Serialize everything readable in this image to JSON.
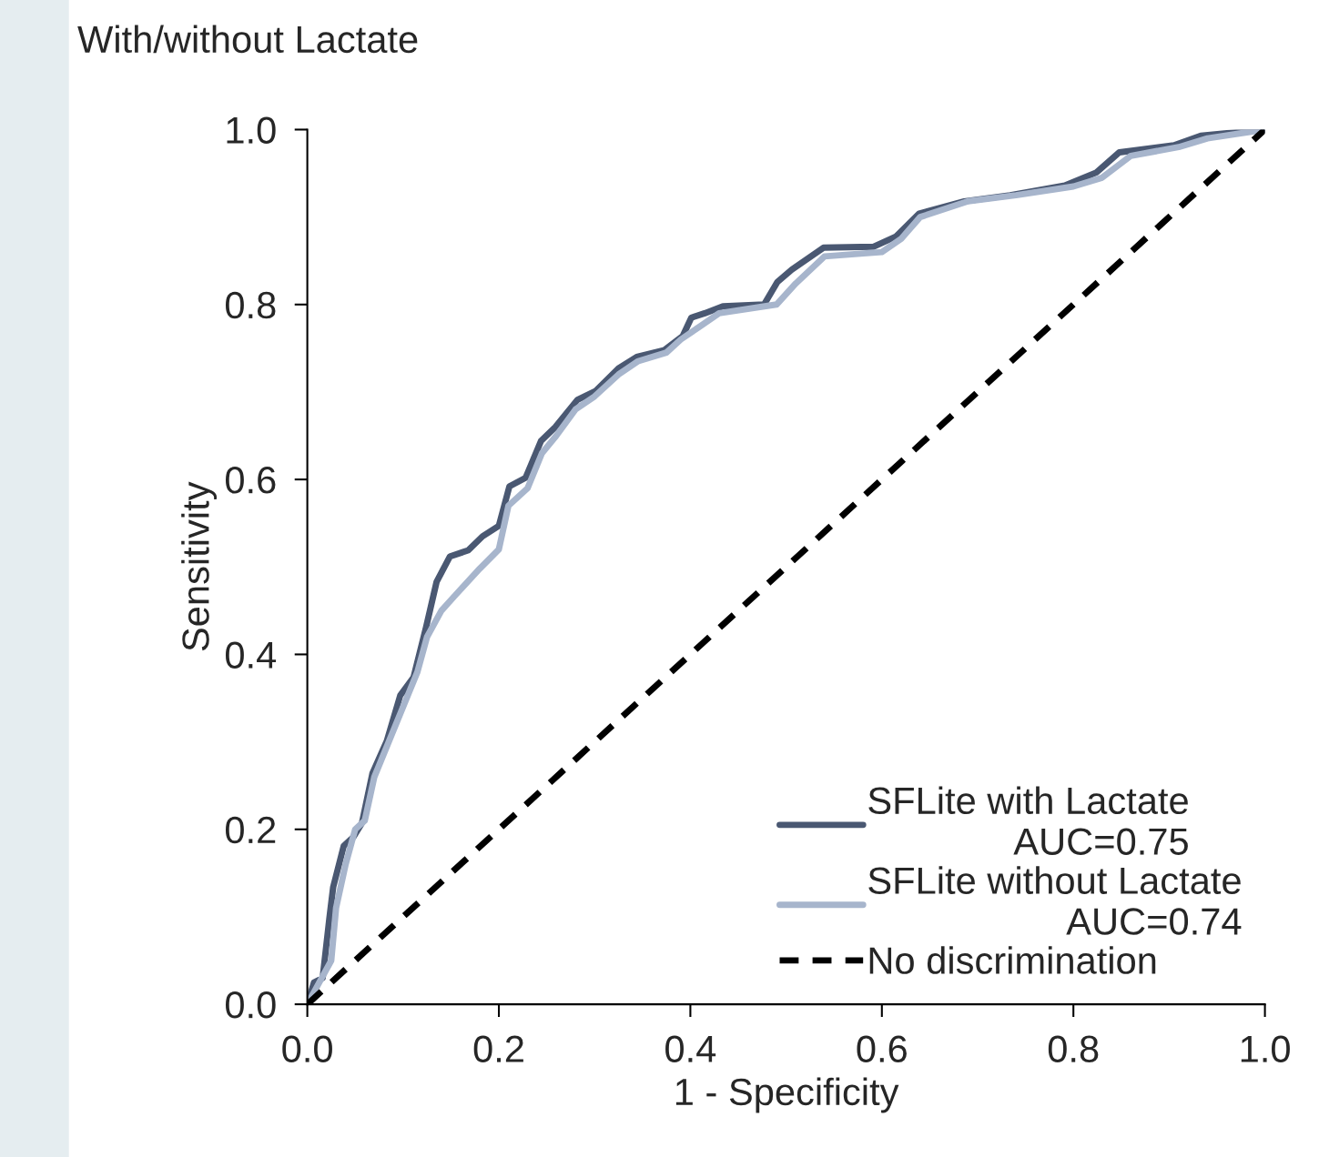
{
  "chart_data": {
    "type": "line",
    "title": "With/without Lactate",
    "xlabel": "1 - Specificity",
    "ylabel": "Sensitivity",
    "xlim": [
      0,
      1
    ],
    "ylim": [
      0,
      1
    ],
    "xticks": [
      {
        "value": 0,
        "label": "0.0"
      },
      0.2,
      0.4,
      0.6,
      0.8,
      {
        "value": 1,
        "label": "1.0"
      }
    ],
    "yticks": [
      {
        "value": 0,
        "label": "0.0"
      },
      0.2,
      0.4,
      0.6,
      0.8,
      {
        "value": 1,
        "label": "1.0"
      }
    ],
    "grid": false,
    "legend": "bottom right",
    "marker": "none",
    "series": [
      {
        "name": "SFLite with Lactate\nAUC=0.75",
        "color": "#4a5872",
        "line_style": "solid",
        "x": [
          0,
          0.007,
          0.016,
          0.023,
          0.027,
          0.038,
          0.048,
          0.057,
          0.068,
          0.083,
          0.097,
          0.111,
          0.124,
          0.135,
          0.149,
          0.168,
          0.183,
          0.2,
          0.211,
          0.228,
          0.244,
          0.259,
          0.282,
          0.301,
          0.325,
          0.344,
          0.373,
          0.392,
          0.401,
          0.415,
          0.434,
          0.477,
          0.491,
          0.506,
          0.539,
          0.591,
          0.615,
          0.639,
          0.686,
          0.734,
          0.791,
          0.824,
          0.848,
          0.905,
          0.933,
          1
        ],
        "values": [
          0,
          0.025,
          0.03,
          0.098,
          0.134,
          0.181,
          0.191,
          0.207,
          0.264,
          0.301,
          0.353,
          0.374,
          0.431,
          0.483,
          0.512,
          0.519,
          0.535,
          0.547,
          0.592,
          0.602,
          0.644,
          0.66,
          0.691,
          0.701,
          0.727,
          0.74,
          0.748,
          0.764,
          0.785,
          0.79,
          0.798,
          0.8,
          0.826,
          0.84,
          0.865,
          0.866,
          0.878,
          0.904,
          0.918,
          0.925,
          0.936,
          0.951,
          0.974,
          0.982,
          0.993,
          1
        ]
      },
      {
        "name": "SFLite without Lactate\nAUC=0.74",
        "color": "#a7b5cc",
        "line_style": "solid",
        "x": [
          0,
          0.01,
          0.025,
          0.03,
          0.04,
          0.05,
          0.06,
          0.07,
          0.085,
          0.1,
          0.115,
          0.125,
          0.14,
          0.154,
          0.18,
          0.2,
          0.21,
          0.23,
          0.245,
          0.26,
          0.28,
          0.3,
          0.325,
          0.345,
          0.375,
          0.39,
          0.41,
          0.43,
          0.49,
          0.51,
          0.54,
          0.6,
          0.62,
          0.64,
          0.69,
          0.74,
          0.8,
          0.83,
          0.86,
          0.91,
          0.94,
          1
        ],
        "values": [
          0,
          0.02,
          0.05,
          0.11,
          0.16,
          0.2,
          0.21,
          0.26,
          0.3,
          0.34,
          0.38,
          0.42,
          0.45,
          0.467,
          0.498,
          0.52,
          0.57,
          0.59,
          0.63,
          0.65,
          0.68,
          0.695,
          0.72,
          0.735,
          0.745,
          0.76,
          0.775,
          0.79,
          0.8,
          0.824,
          0.855,
          0.86,
          0.875,
          0.9,
          0.918,
          0.925,
          0.935,
          0.945,
          0.97,
          0.98,
          0.99,
          1
        ]
      },
      {
        "name": "No discrimination",
        "color": "#000000",
        "line_style": "dashed",
        "x": [
          0,
          1
        ],
        "values": [
          0,
          1
        ]
      }
    ]
  }
}
